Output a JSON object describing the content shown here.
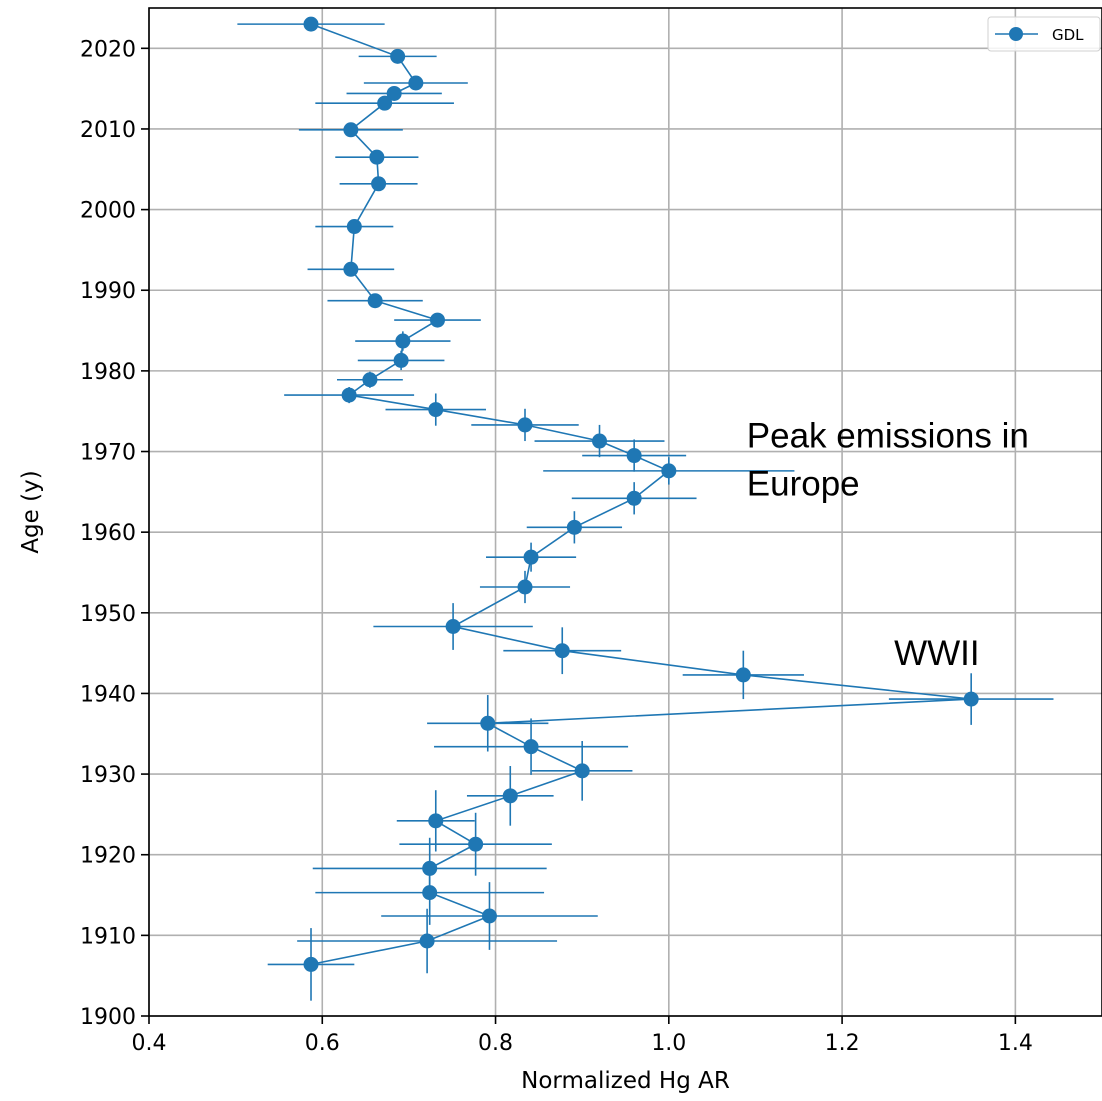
{
  "chart_data": {
    "type": "scatter",
    "title": "",
    "xlabel": "Normalized Hg AR",
    "ylabel": "Age (y)",
    "xlim": [
      0.4,
      1.5
    ],
    "ylim": [
      1900,
      2025
    ],
    "xticks": [
      "0.4",
      "0.6",
      "0.8",
      "1.0",
      "1.2",
      "1.4"
    ],
    "yticks": [
      "1900",
      "1910",
      "1920",
      "1930",
      "1940",
      "1950",
      "1960",
      "1970",
      "1980",
      "1990",
      "2000",
      "2010",
      "2020"
    ],
    "grid": true,
    "legend_position": "top-right",
    "color": "#1f77b4",
    "series": [
      {
        "name": "GDL",
        "x": [
          0.587,
          0.687,
          0.708,
          0.683,
          0.672,
          0.633,
          0.663,
          0.665,
          0.637,
          0.633,
          0.661,
          0.733,
          0.693,
          0.691,
          0.655,
          0.631,
          0.731,
          0.834,
          0.92,
          0.96,
          1.0,
          0.96,
          0.891,
          0.841,
          0.834,
          0.751,
          0.877,
          1.086,
          1.349,
          0.791,
          0.841,
          0.9,
          0.817,
          0.731,
          0.777,
          0.724,
          0.724,
          0.793,
          0.721,
          0.587
        ],
        "y": [
          2023.0,
          2019.0,
          2015.7,
          2014.4,
          2013.2,
          2009.9,
          2006.5,
          2003.2,
          1997.9,
          1992.6,
          1988.7,
          1986.3,
          1983.7,
          1981.3,
          1978.9,
          1977.0,
          1975.2,
          1973.3,
          1971.3,
          1969.5,
          1967.6,
          1964.2,
          1960.6,
          1956.9,
          1953.2,
          1948.3,
          1945.3,
          1942.3,
          1939.3,
          1936.3,
          1933.4,
          1930.4,
          1927.3,
          1924.2,
          1921.3,
          1918.3,
          1915.3,
          1912.4,
          1909.3,
          1906.4
        ],
        "xerr": [
          0.085,
          0.045,
          0.06,
          0.055,
          0.08,
          0.06,
          0.048,
          0.045,
          0.045,
          0.05,
          0.055,
          0.05,
          0.055,
          0.05,
          0.038,
          0.075,
          0.058,
          0.062,
          0.075,
          0.06,
          0.145,
          0.072,
          0.055,
          0.052,
          0.052,
          0.092,
          0.068,
          0.07,
          0.095,
          0.07,
          0.112,
          0.058,
          0.05,
          0.045,
          0.088,
          0.135,
          0.132,
          0.125,
          0.15,
          0.05
        ],
        "yerr": [
          0.0,
          0.6,
          0.7,
          0.8,
          0.6,
          0.8,
          0.5,
          0.5,
          0.5,
          0.5,
          0.5,
          0.8,
          1.2,
          1.2,
          1.0,
          1.0,
          2.0,
          2.0,
          2.0,
          2.0,
          1.7,
          2.0,
          2.0,
          1.8,
          2.0,
          2.9,
          2.9,
          3.0,
          3.2,
          3.5,
          3.5,
          3.7,
          3.7,
          3.8,
          3.9,
          3.8,
          4.0,
          4.2,
          4.0,
          4.5
        ]
      }
    ],
    "annotations": [
      {
        "text_lines": [
          "Peak emissions in",
          "Europe"
        ],
        "x": 1.09,
        "y": 1970.5
      },
      {
        "text_lines": [
          "WWII"
        ],
        "x": 1.26,
        "y": 1943.5
      }
    ]
  }
}
